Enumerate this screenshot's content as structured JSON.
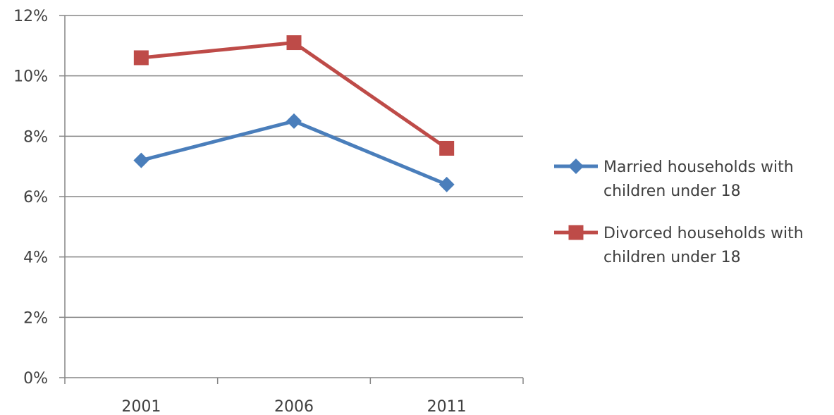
{
  "chart_data": {
    "type": "line",
    "title": "",
    "xlabel": "",
    "ylabel": "",
    "categories": [
      "2001",
      "2006",
      "2011"
    ],
    "ylim": [
      0,
      12
    ],
    "yticks": [
      0,
      2,
      4,
      6,
      8,
      10,
      12
    ],
    "ytick_labels": [
      "0%",
      "2%",
      "4%",
      "6%",
      "8%",
      "10%",
      "12%"
    ],
    "grid": true,
    "legend_position": "right",
    "series": [
      {
        "name": "Married households with children under 18",
        "legend_lines": [
          "Married households with",
          "children under 18"
        ],
        "values": [
          7.2,
          8.5,
          6.4
        ],
        "color": "#4a7ebb",
        "marker": "diamond"
      },
      {
        "name": "Divorced households with children under 18",
        "legend_lines": [
          "Divorced households with",
          "children under 18"
        ],
        "values": [
          10.6,
          11.1,
          7.6
        ],
        "color": "#be4b48",
        "marker": "square"
      }
    ]
  }
}
